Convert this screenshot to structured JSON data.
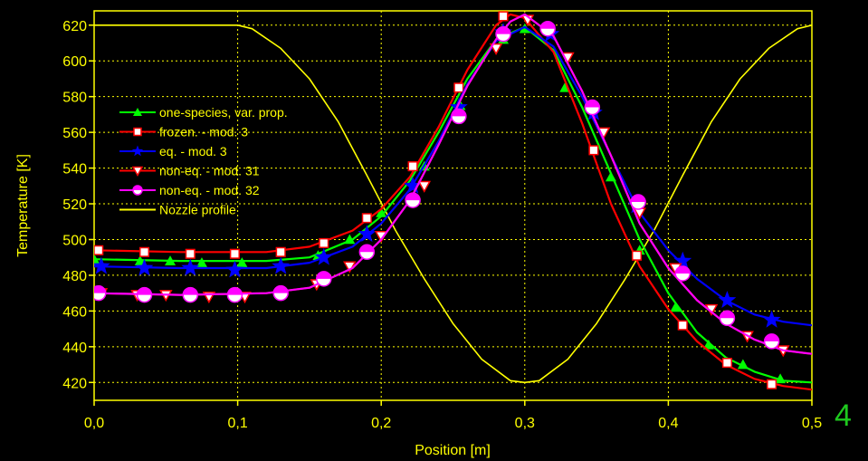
{
  "page_number": "4",
  "chart_data": {
    "type": "line",
    "title": "",
    "xlabel": "Position [m]",
    "ylabel": "Temperature [K]",
    "xlim": [
      0.0,
      0.5
    ],
    "ylim": [
      410,
      628
    ],
    "x_ticks": [
      0.0,
      0.1,
      0.2,
      0.3,
      0.4,
      0.5
    ],
    "x_tick_labels": [
      "0,0",
      "0,1",
      "0,2",
      "0,3",
      "0,4",
      "0,5"
    ],
    "y_ticks": [
      420,
      440,
      460,
      480,
      500,
      520,
      540,
      560,
      580,
      600,
      620
    ],
    "y_tick_labels": [
      "420",
      "440",
      "460",
      "480",
      "500",
      "520",
      "540",
      "560",
      "580",
      "600",
      "620"
    ],
    "grid": true,
    "legend_position": "left",
    "series": [
      {
        "name": "one-species, var. prop.",
        "color": "#00ff00",
        "marker": "triangle-up",
        "curve": [
          [
            0.0,
            489
          ],
          [
            0.06,
            488
          ],
          [
            0.12,
            488
          ],
          [
            0.15,
            490
          ],
          [
            0.18,
            500
          ],
          [
            0.2,
            513
          ],
          [
            0.22,
            533
          ],
          [
            0.24,
            560
          ],
          [
            0.26,
            590
          ],
          [
            0.28,
            612
          ],
          [
            0.3,
            619
          ],
          [
            0.32,
            606
          ],
          [
            0.34,
            574
          ],
          [
            0.36,
            537
          ],
          [
            0.38,
            500
          ],
          [
            0.4,
            470
          ],
          [
            0.42,
            448
          ],
          [
            0.44,
            434
          ],
          [
            0.46,
            426
          ],
          [
            0.48,
            421
          ],
          [
            0.5,
            420
          ]
        ],
        "markers": [
          [
            0.0,
            489
          ],
          [
            0.032,
            488
          ],
          [
            0.053,
            488
          ],
          [
            0.075,
            487
          ],
          [
            0.103,
            487
          ],
          [
            0.156,
            491
          ],
          [
            0.178,
            500
          ],
          [
            0.2,
            515
          ],
          [
            0.23,
            541
          ],
          [
            0.255,
            575
          ],
          [
            0.285,
            612
          ],
          [
            0.3,
            618
          ],
          [
            0.328,
            585
          ],
          [
            0.36,
            535
          ],
          [
            0.38,
            494
          ],
          [
            0.405,
            462
          ],
          [
            0.428,
            441
          ],
          [
            0.452,
            430
          ],
          [
            0.478,
            422
          ]
        ]
      },
      {
        "name": "frozen. - mod. 3",
        "color": "#ff0000",
        "marker": "square",
        "curve": [
          [
            0.0,
            494
          ],
          [
            0.06,
            493
          ],
          [
            0.12,
            493
          ],
          [
            0.15,
            496
          ],
          [
            0.18,
            505
          ],
          [
            0.2,
            517
          ],
          [
            0.22,
            535
          ],
          [
            0.24,
            563
          ],
          [
            0.26,
            595
          ],
          [
            0.28,
            620
          ],
          [
            0.29,
            626
          ],
          [
            0.3,
            624
          ],
          [
            0.32,
            605
          ],
          [
            0.34,
            565
          ],
          [
            0.36,
            520
          ],
          [
            0.38,
            485
          ],
          [
            0.4,
            461
          ],
          [
            0.42,
            443
          ],
          [
            0.44,
            430
          ],
          [
            0.46,
            422
          ],
          [
            0.48,
            418
          ],
          [
            0.5,
            416
          ]
        ],
        "markers": [
          [
            0.003,
            494
          ],
          [
            0.035,
            493
          ],
          [
            0.067,
            492
          ],
          [
            0.098,
            492
          ],
          [
            0.13,
            493
          ],
          [
            0.16,
            498
          ],
          [
            0.19,
            512
          ],
          [
            0.222,
            541
          ],
          [
            0.254,
            585
          ],
          [
            0.285,
            625
          ],
          [
            0.348,
            550
          ],
          [
            0.378,
            491
          ],
          [
            0.41,
            452
          ],
          [
            0.441,
            431
          ],
          [
            0.472,
            419
          ]
        ]
      },
      {
        "name": "eq. - mod. 3",
        "color": "#0000ff",
        "marker": "star",
        "curve": [
          [
            0.0,
            485
          ],
          [
            0.06,
            484
          ],
          [
            0.12,
            484
          ],
          [
            0.15,
            487
          ],
          [
            0.18,
            496
          ],
          [
            0.2,
            509
          ],
          [
            0.22,
            528
          ],
          [
            0.24,
            555
          ],
          [
            0.26,
            587
          ],
          [
            0.28,
            611
          ],
          [
            0.3,
            619
          ],
          [
            0.32,
            608
          ],
          [
            0.34,
            580
          ],
          [
            0.36,
            547
          ],
          [
            0.38,
            515
          ],
          [
            0.4,
            494
          ],
          [
            0.42,
            478
          ],
          [
            0.44,
            466
          ],
          [
            0.46,
            458
          ],
          [
            0.48,
            454
          ],
          [
            0.5,
            452
          ]
        ],
        "markers": [
          [
            0.005,
            485
          ],
          [
            0.035,
            484
          ],
          [
            0.067,
            484
          ],
          [
            0.098,
            483
          ],
          [
            0.13,
            485
          ],
          [
            0.16,
            490
          ],
          [
            0.19,
            503
          ],
          [
            0.222,
            530
          ],
          [
            0.254,
            574
          ],
          [
            0.285,
            616
          ],
          [
            0.318,
            615
          ],
          [
            0.348,
            571
          ],
          [
            0.378,
            519
          ],
          [
            0.41,
            488
          ],
          [
            0.441,
            466
          ],
          [
            0.472,
            455
          ]
        ]
      },
      {
        "name": "non-eq. - mod. 31",
        "color": "#ff0000",
        "marker": "triangle-down",
        "curve": [
          [
            0.0,
            470
          ],
          [
            0.06,
            469
          ],
          [
            0.12,
            470
          ],
          [
            0.15,
            473
          ],
          [
            0.18,
            484
          ],
          [
            0.2,
            500
          ],
          [
            0.22,
            522
          ],
          [
            0.24,
            553
          ],
          [
            0.26,
            586
          ],
          [
            0.28,
            612
          ],
          [
            0.29,
            622
          ],
          [
            0.3,
            626
          ],
          [
            0.32,
            614
          ],
          [
            0.34,
            583
          ],
          [
            0.36,
            547
          ],
          [
            0.38,
            509
          ],
          [
            0.4,
            484
          ],
          [
            0.42,
            466
          ],
          [
            0.44,
            453
          ],
          [
            0.46,
            444
          ],
          [
            0.48,
            438
          ],
          [
            0.5,
            436
          ]
        ],
        "markers": [
          [
            0.005,
            470
          ],
          [
            0.03,
            469
          ],
          [
            0.05,
            469
          ],
          [
            0.08,
            468
          ],
          [
            0.105,
            468
          ],
          [
            0.155,
            475
          ],
          [
            0.178,
            485
          ],
          [
            0.2,
            502
          ],
          [
            0.23,
            530
          ],
          [
            0.28,
            607
          ],
          [
            0.302,
            623
          ],
          [
            0.33,
            602
          ],
          [
            0.355,
            560
          ],
          [
            0.38,
            515
          ],
          [
            0.405,
            484
          ],
          [
            0.43,
            461
          ],
          [
            0.455,
            446
          ],
          [
            0.48,
            438
          ]
        ]
      },
      {
        "name": "non-eq. - mod. 32",
        "color": "#ff00ff",
        "marker": "circle-half",
        "curve": [
          [
            0.0,
            470
          ],
          [
            0.06,
            469
          ],
          [
            0.12,
            470
          ],
          [
            0.15,
            473
          ],
          [
            0.18,
            484
          ],
          [
            0.2,
            500
          ],
          [
            0.22,
            522
          ],
          [
            0.24,
            553
          ],
          [
            0.26,
            586
          ],
          [
            0.28,
            612
          ],
          [
            0.29,
            622
          ],
          [
            0.3,
            626
          ],
          [
            0.32,
            614
          ],
          [
            0.34,
            583
          ],
          [
            0.36,
            547
          ],
          [
            0.38,
            509
          ],
          [
            0.4,
            484
          ],
          [
            0.42,
            466
          ],
          [
            0.44,
            453
          ],
          [
            0.46,
            444
          ],
          [
            0.48,
            438
          ],
          [
            0.5,
            436
          ]
        ],
        "markers": [
          [
            0.003,
            470
          ],
          [
            0.035,
            469
          ],
          [
            0.067,
            469
          ],
          [
            0.098,
            469
          ],
          [
            0.13,
            470
          ],
          [
            0.16,
            478
          ],
          [
            0.19,
            493
          ],
          [
            0.222,
            522
          ],
          [
            0.254,
            569
          ],
          [
            0.285,
            615
          ],
          [
            0.316,
            618
          ],
          [
            0.347,
            574
          ],
          [
            0.379,
            521
          ],
          [
            0.41,
            481
          ],
          [
            0.441,
            456
          ],
          [
            0.472,
            443
          ]
        ]
      },
      {
        "name": "Nozzle profile",
        "color": "#ffff00",
        "marker": "none",
        "curve": [
          [
            0.0,
            620
          ],
          [
            0.1,
            620
          ],
          [
            0.11,
            618
          ],
          [
            0.13,
            607
          ],
          [
            0.15,
            590
          ],
          [
            0.17,
            566
          ],
          [
            0.19,
            536
          ],
          [
            0.21,
            505
          ],
          [
            0.23,
            478
          ],
          [
            0.25,
            453
          ],
          [
            0.27,
            433
          ],
          [
            0.29,
            421
          ],
          [
            0.3,
            420
          ],
          [
            0.31,
            421
          ],
          [
            0.33,
            433
          ],
          [
            0.35,
            453
          ],
          [
            0.37,
            478
          ],
          [
            0.39,
            505
          ],
          [
            0.41,
            536
          ],
          [
            0.43,
            566
          ],
          [
            0.45,
            590
          ],
          [
            0.47,
            607
          ],
          [
            0.49,
            618
          ],
          [
            0.5,
            620
          ]
        ],
        "markers": []
      }
    ]
  }
}
